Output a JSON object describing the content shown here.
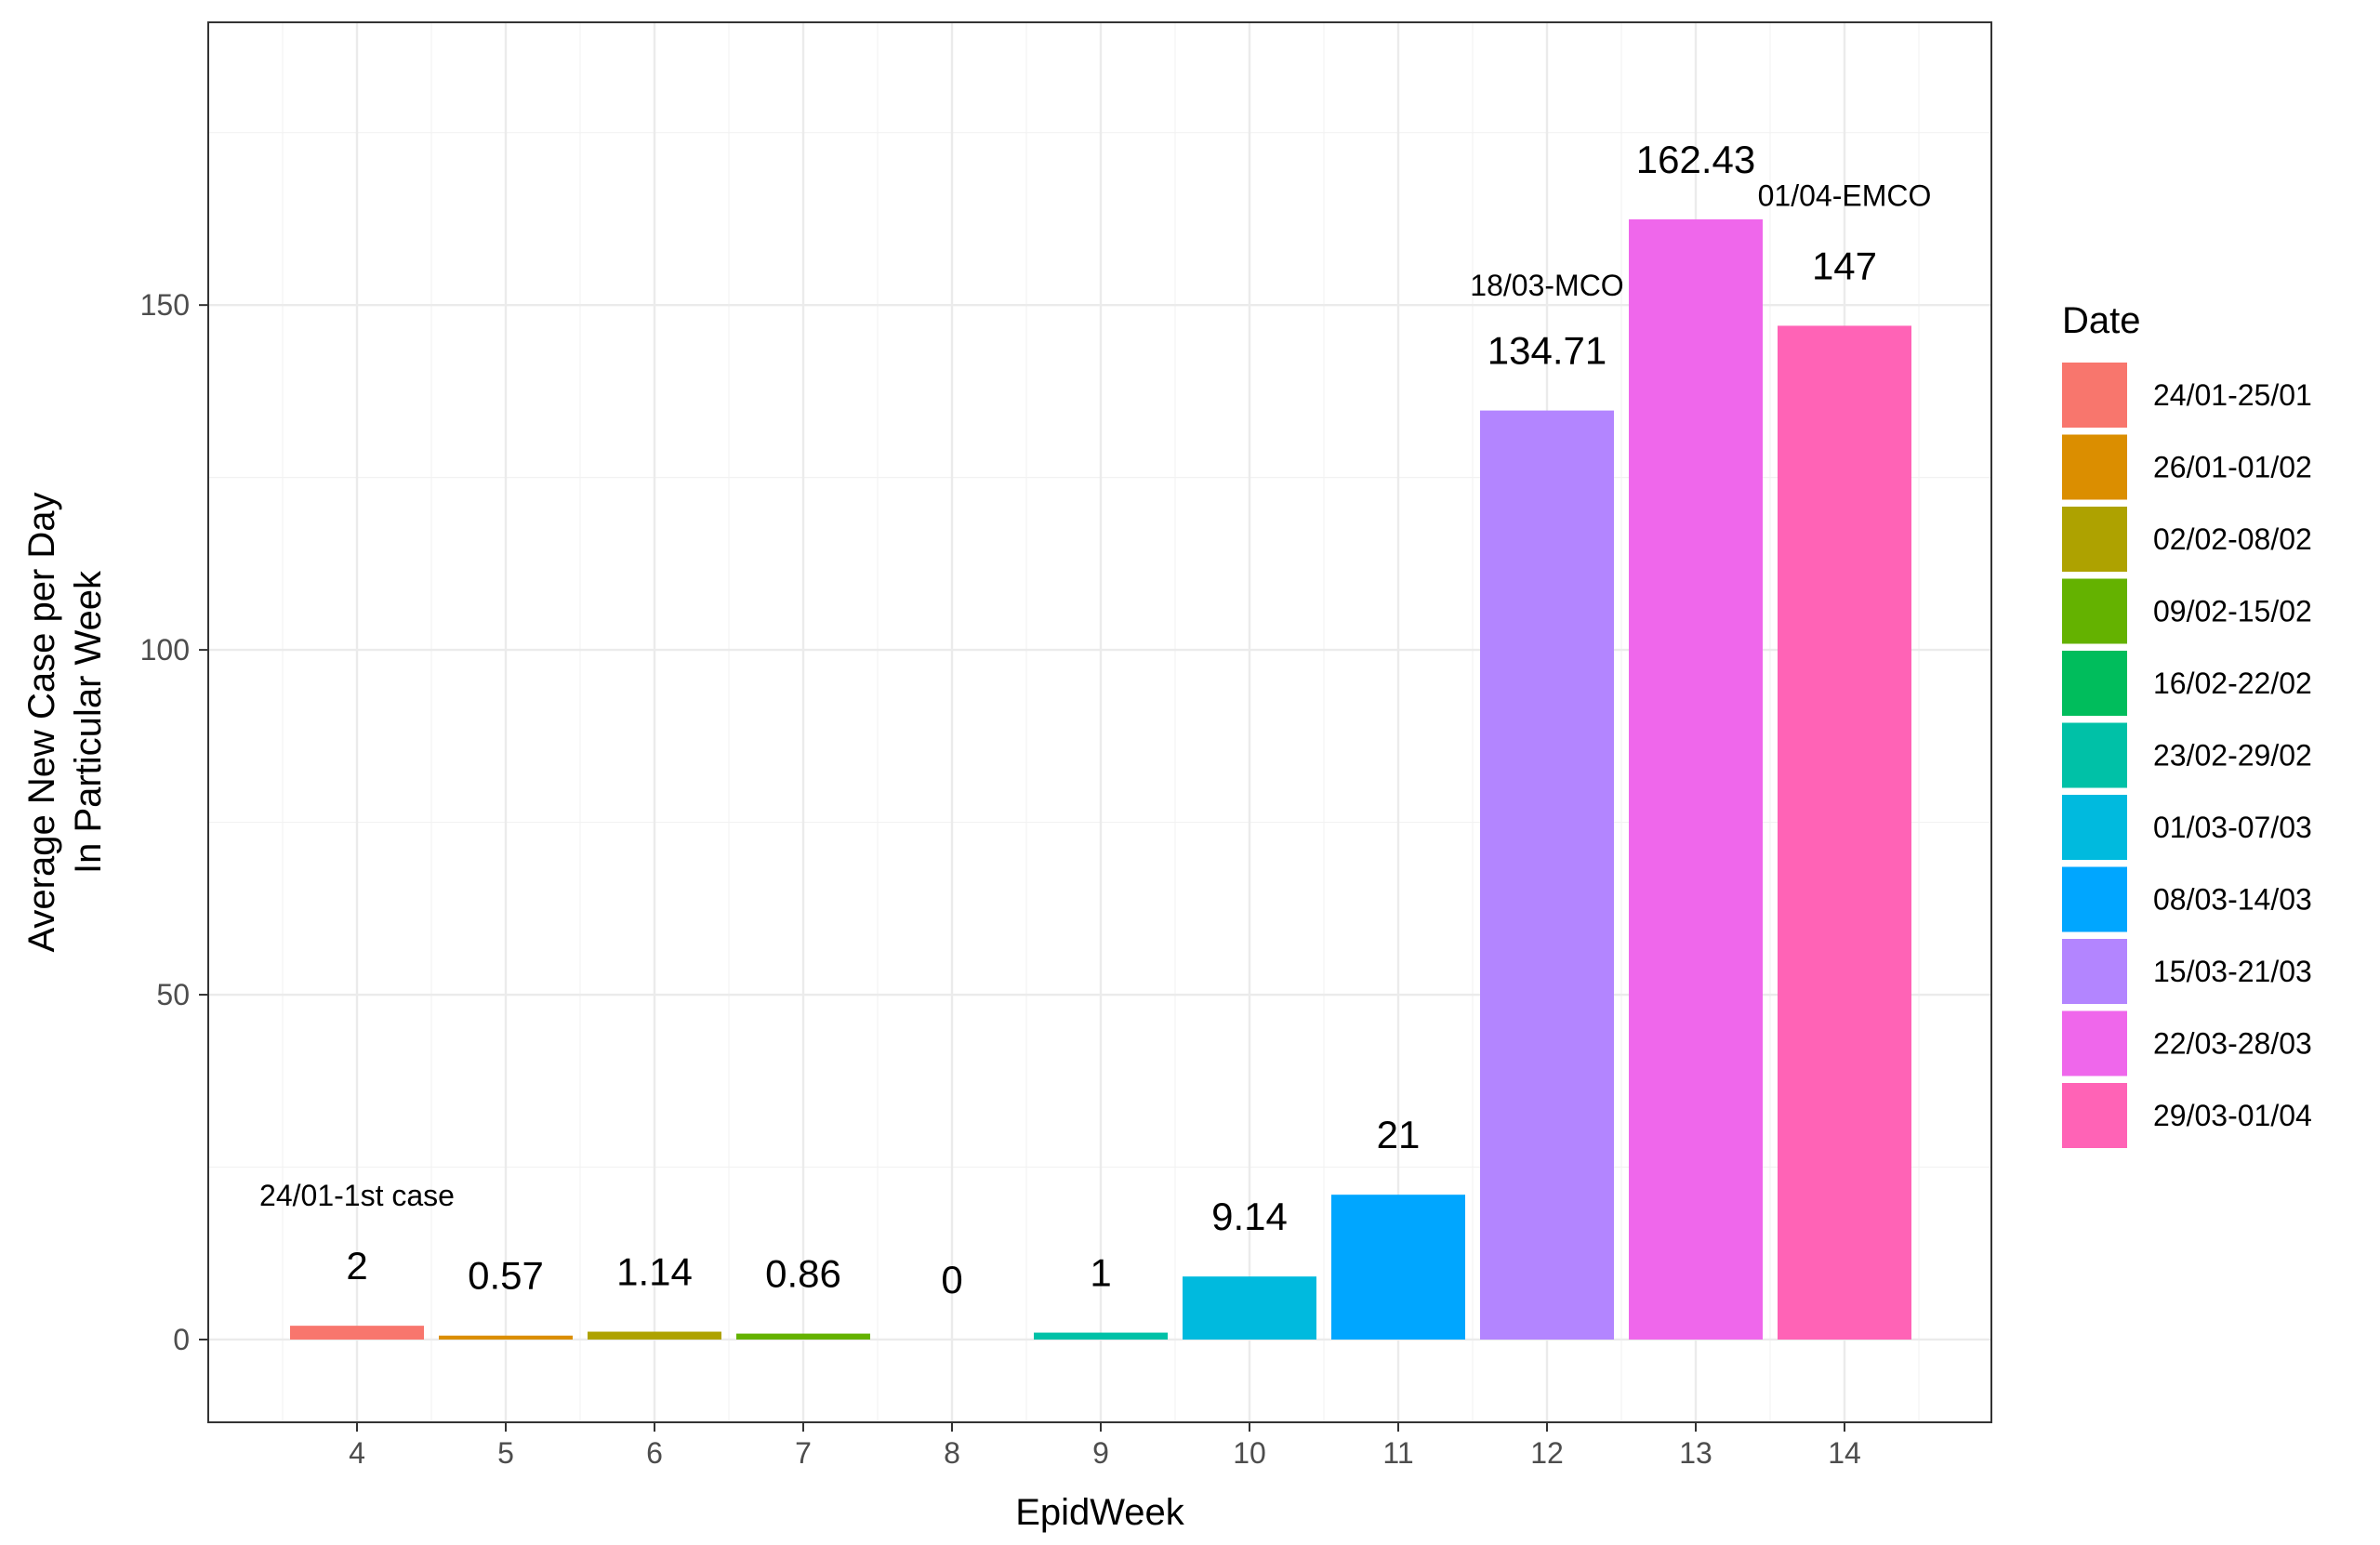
{
  "chart_data": {
    "type": "bar",
    "title": "",
    "xlabel": "EpidWeek",
    "ylabel_lines": [
      "Average New Case per Day",
      "In Particular Week"
    ],
    "categories": [
      "4",
      "5",
      "6",
      "7",
      "8",
      "9",
      "10",
      "11",
      "12",
      "13",
      "14"
    ],
    "values": [
      2,
      0.57,
      1.14,
      0.86,
      0,
      1,
      9.14,
      21,
      134.71,
      162.43,
      147
    ],
    "value_labels": [
      "2",
      "0.57",
      "1.14",
      "0.86",
      "0",
      "1",
      "9.14",
      "21",
      "134.71",
      "162.43",
      "147"
    ],
    "ylim": [
      -12,
      191
    ],
    "yticks": [
      0,
      50,
      100,
      150
    ],
    "ytick_labels": [
      "0",
      "50",
      "100",
      "150"
    ],
    "grid": true,
    "legend": {
      "title": "Date",
      "position": "right",
      "entries": [
        {
          "label": "24/01-25/01",
          "color": "#F8766D"
        },
        {
          "label": "26/01-01/02",
          "color": "#DB8E00"
        },
        {
          "label": "02/02-08/02",
          "color": "#AEA200"
        },
        {
          "label": "09/02-15/02",
          "color": "#64B200"
        },
        {
          "label": "16/02-22/02",
          "color": "#00BD5C"
        },
        {
          "label": "23/02-29/02",
          "color": "#00C1A7"
        },
        {
          "label": "01/03-07/03",
          "color": "#00BADE"
        },
        {
          "label": "08/03-14/03",
          "color": "#00A6FF"
        },
        {
          "label": "15/03-21/03",
          "color": "#B385FF"
        },
        {
          "label": "22/03-28/03",
          "color": "#EF67EB"
        },
        {
          "label": "29/03-01/04",
          "color": "#FF63B6"
        }
      ]
    },
    "annotations": [
      {
        "text": "24/01-1st case",
        "category": "4",
        "y": 21
      },
      {
        "text": "18/03-MCO",
        "category": "12",
        "y": 153
      },
      {
        "text": "01/04-EMCO",
        "category": "14",
        "y": 166
      }
    ]
  }
}
